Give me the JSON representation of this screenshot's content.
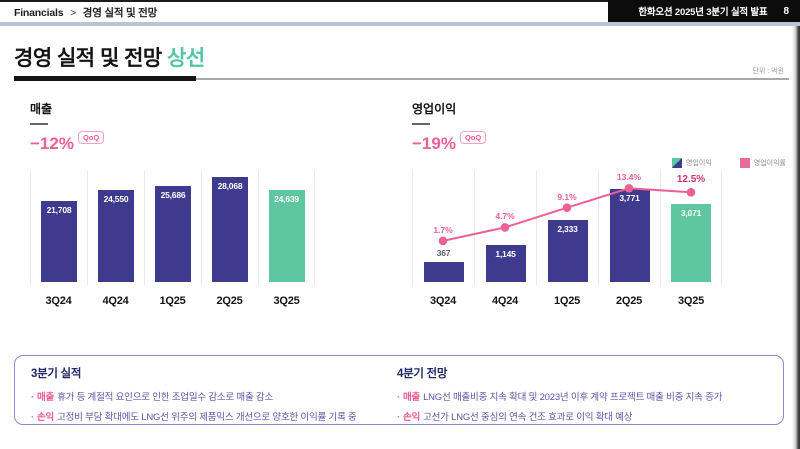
{
  "header": {
    "breadcrumb_root": "Financials",
    "breadcrumb_separator": ">",
    "breadcrumb_section": "경영 실적 및 전망",
    "deck_title": "한화오션 2025년 3분기 실적 발표",
    "page_number": "8"
  },
  "title": {
    "main": "경영 실적 및 전망",
    "accent": "상선",
    "unit": "단위 : 억원"
  },
  "colors": {
    "bar_purple": "#3e3a8e",
    "bar_green": "#5ec7a1",
    "line_pink": "#ee5f95",
    "final_pct_pink": "#d6326f",
    "accent_green": "#52c7a0",
    "heading_navy": "#232a66",
    "body_purple": "#5b55a8",
    "box_border": "#8f88cf",
    "header_divider": "#b9c4d7",
    "header_dark": "#0c0c0c"
  },
  "chart_data": [
    {
      "type": "bar",
      "title": "매출",
      "delta_label": "−12%",
      "delta_badge": "QoQ",
      "unit": "억원",
      "categories": [
        "3Q24",
        "4Q24",
        "1Q25",
        "2Q25",
        "3Q25"
      ],
      "values": [
        21708,
        24550,
        25686,
        28068,
        24639
      ],
      "value_labels": [
        "21,708",
        "24,550",
        "25,686",
        "28,068",
        "24,639"
      ],
      "bar_colors": [
        "#3e3a8e",
        "#3e3a8e",
        "#3e3a8e",
        "#3e3a8e",
        "#5ec7a1"
      ],
      "ylim": [
        0,
        28068
      ],
      "grid": "vertical-light"
    },
    {
      "type": "bar",
      "title": "영업이익",
      "delta_label": "−19%",
      "delta_badge": "QoQ",
      "unit": "억원",
      "categories": [
        "3Q24",
        "4Q24",
        "1Q25",
        "2Q25",
        "3Q25"
      ],
      "legend": [
        "영업이익",
        "영업이익률"
      ],
      "legend_position": "top-right",
      "series": [
        {
          "name": "영업이익",
          "type": "bar",
          "values": [
            367,
            1145,
            2333,
            3771,
            3071
          ],
          "value_labels": [
            "367",
            "1,145",
            "2,333",
            "3,771",
            "3,071"
          ],
          "bar_colors": [
            "#3e3a8e",
            "#3e3a8e",
            "#3e3a8e",
            "#3e3a8e",
            "#5ec7a1"
          ]
        },
        {
          "name": "영업이익률",
          "type": "line",
          "values": [
            1.7,
            4.7,
            9.1,
            13.4,
            12.5
          ],
          "value_labels": [
            "1.7%",
            "4.7%",
            "9.1%",
            "13.4%",
            "12.5%"
          ],
          "color": "#ee5f95"
        }
      ],
      "grid": "vertical-light"
    }
  ],
  "insights": {
    "left": {
      "heading": "3분기 실적",
      "bullets": [
        {
          "keyword": "매출",
          "text": "휴가 등 계절적 요인으로 인한 조업일수 감소로 매출 감소"
        },
        {
          "keyword": "손익",
          "text": "고정비 부담 확대에도 LNG선 위주의 제품믹스 개선으로 양호한 이익률 기록 중"
        }
      ]
    },
    "right": {
      "heading": "4분기 전망",
      "bullets": [
        {
          "keyword": "매출",
          "text": "LNG선 매출비중 지속 확대 및 2023년 이후 계약 프로젝트 매출 비중 지속 증가"
        },
        {
          "keyword": "손익",
          "text": "고선가 LNG선 중심의 연속 건조 효과로 이익 확대 예상"
        }
      ]
    }
  }
}
